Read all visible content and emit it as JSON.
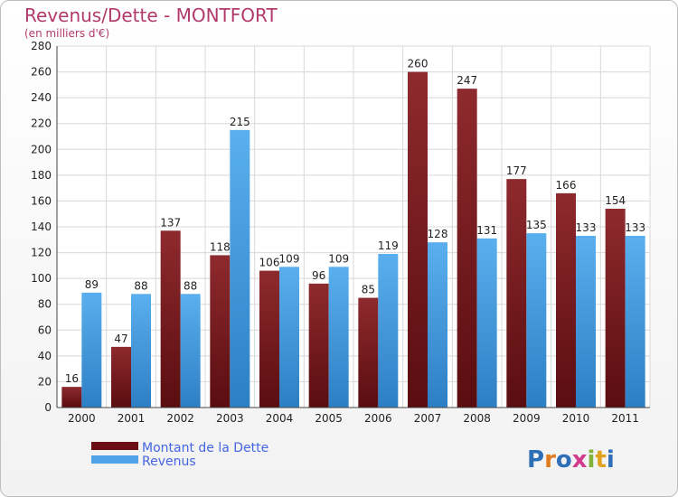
{
  "header": {
    "title": "Revenus/Dette - MONTFORT",
    "subtitle": "(en milliers d'€)"
  },
  "logo": {
    "text": "Proxiti"
  },
  "colors": {
    "dette": "#7a1a1f",
    "revenus": "#4fa3e6",
    "grid": "#d8d8d8"
  },
  "chart_data": {
    "type": "bar",
    "title": "Revenus/Dette - MONTFORT",
    "subtitle": "(en milliers d'€)",
    "xlabel": "",
    "ylabel": "",
    "ylim": [
      0,
      280
    ],
    "yticks": [
      0,
      20,
      40,
      60,
      80,
      100,
      120,
      140,
      160,
      180,
      200,
      220,
      240,
      260,
      280
    ],
    "categories": [
      "2000",
      "2001",
      "2002",
      "2003",
      "2004",
      "2005",
      "2006",
      "2007",
      "2008",
      "2009",
      "2010",
      "2011"
    ],
    "series": [
      {
        "name": "Montant de la Dette",
        "values": [
          16,
          47,
          137,
          118,
          106,
          96,
          85,
          260,
          247,
          177,
          166,
          154
        ]
      },
      {
        "name": "Revenus",
        "values": [
          89,
          88,
          88,
          215,
          109,
          109,
          119,
          128,
          131,
          135,
          133,
          133
        ]
      }
    ],
    "grid": true,
    "legend": "bottom-left"
  }
}
